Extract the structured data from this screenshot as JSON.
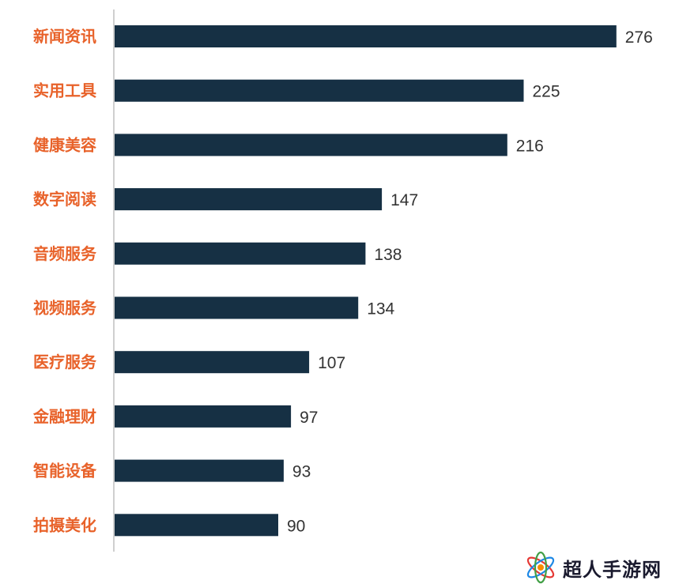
{
  "chart_data": {
    "type": "bar",
    "orientation": "horizontal",
    "categories": [
      "新闻资讯",
      "实用工具",
      "健康美容",
      "数字阅读",
      "音频服务",
      "视频服务",
      "医疗服务",
      "金融理财",
      "智能设备",
      "拍摄美化"
    ],
    "values": [
      276,
      225,
      216,
      147,
      138,
      134,
      107,
      97,
      93,
      90
    ],
    "title": "",
    "xlabel": "",
    "ylabel": "",
    "xlim": [
      0,
      300
    ],
    "grid": false,
    "legend": "none",
    "data_labels": true
  },
  "colors": {
    "bar": "#163044",
    "category_label": "#e8622a",
    "axis_line": "#bfbfbf"
  },
  "watermark": {
    "text": "超人手游网",
    "icon": "atom-logo-icon"
  }
}
